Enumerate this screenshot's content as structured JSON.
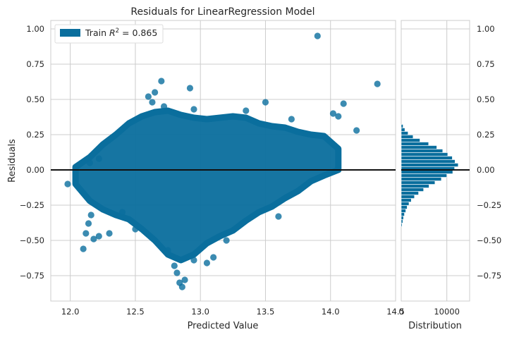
{
  "chart_data": {
    "type": "scatter",
    "title": "Residuals for LinearRegression Model",
    "xlabel": "Predicted Value",
    "ylabel": "Residuals",
    "xlim": [
      11.85,
      14.5
    ],
    "ylim": [
      -0.93,
      1.06
    ],
    "x_ticks": [
      12.0,
      12.5,
      13.0,
      13.5,
      14.0,
      14.5
    ],
    "x_tick_labels": [
      "12.0",
      "12.5",
      "13.0",
      "13.5",
      "14.0",
      "14.5"
    ],
    "y_ticks": [
      -0.75,
      -0.5,
      -0.25,
      0.0,
      0.25,
      0.5,
      0.75,
      1.0
    ],
    "y_tick_labels": [
      "−0.75",
      "−0.50",
      "−0.25",
      "0.00",
      "0.25",
      "0.50",
      "0.75",
      "1.00"
    ],
    "grid": true,
    "reference_line_y": 0,
    "legend": {
      "placement": "top-left",
      "label_prefix": "Train ",
      "label_var": "R",
      "label_sup": "2",
      "label_suffix": " = 0.865"
    },
    "point_color": "#0a6e9d",
    "series": [
      {
        "name": "Train",
        "points": [
          [
            11.98,
            -0.1
          ],
          [
            12.1,
            -0.56
          ],
          [
            12.12,
            -0.45
          ],
          [
            12.14,
            -0.38
          ],
          [
            12.16,
            -0.32
          ],
          [
            12.18,
            -0.49
          ],
          [
            12.22,
            -0.47
          ],
          [
            12.3,
            -0.45
          ],
          [
            12.6,
            0.52
          ],
          [
            12.63,
            0.48
          ],
          [
            12.65,
            0.55
          ],
          [
            12.7,
            0.63
          ],
          [
            12.72,
            0.45
          ],
          [
            12.8,
            -0.68
          ],
          [
            12.82,
            -0.73
          ],
          [
            12.84,
            -0.8
          ],
          [
            12.86,
            -0.83
          ],
          [
            12.88,
            -0.78
          ],
          [
            12.95,
            -0.64
          ],
          [
            13.05,
            -0.66
          ],
          [
            13.1,
            -0.62
          ],
          [
            12.92,
            0.58
          ],
          [
            13.5,
            0.48
          ],
          [
            13.9,
            0.95
          ],
          [
            14.36,
            0.61
          ],
          [
            14.1,
            0.47
          ],
          [
            14.2,
            0.28
          ],
          [
            14.02,
            0.4
          ],
          [
            14.06,
            0.38
          ],
          [
            12.95,
            0.43
          ],
          [
            13.35,
            0.42
          ],
          [
            13.7,
            0.36
          ],
          [
            12.75,
            -0.57
          ],
          [
            13.2,
            -0.5
          ],
          [
            12.5,
            -0.42
          ],
          [
            12.4,
            -0.3
          ],
          [
            13.6,
            -0.33
          ],
          [
            12.22,
            0.08
          ],
          [
            12.15,
            0.05
          ]
        ]
      }
    ],
    "cloud": {
      "x_start": 12.04,
      "x_end": 14.06,
      "upper_envelope": [
        [
          12.04,
          0.02
        ],
        [
          12.15,
          0.09
        ],
        [
          12.25,
          0.18
        ],
        [
          12.35,
          0.25
        ],
        [
          12.45,
          0.33
        ],
        [
          12.55,
          0.38
        ],
        [
          12.65,
          0.41
        ],
        [
          12.75,
          0.42
        ],
        [
          12.85,
          0.39
        ],
        [
          12.95,
          0.37
        ],
        [
          13.05,
          0.36
        ],
        [
          13.15,
          0.37
        ],
        [
          13.25,
          0.38
        ],
        [
          13.35,
          0.37
        ],
        [
          13.45,
          0.33
        ],
        [
          13.55,
          0.31
        ],
        [
          13.65,
          0.3
        ],
        [
          13.75,
          0.27
        ],
        [
          13.85,
          0.25
        ],
        [
          13.95,
          0.24
        ],
        [
          14.06,
          0.15
        ]
      ],
      "lower_envelope": [
        [
          14.06,
          0.0
        ],
        [
          13.95,
          -0.04
        ],
        [
          13.85,
          -0.08
        ],
        [
          13.75,
          -0.15
        ],
        [
          13.65,
          -0.2
        ],
        [
          13.55,
          -0.26
        ],
        [
          13.45,
          -0.3
        ],
        [
          13.35,
          -0.36
        ],
        [
          13.25,
          -0.43
        ],
        [
          13.15,
          -0.47
        ],
        [
          13.05,
          -0.52
        ],
        [
          12.95,
          -0.6
        ],
        [
          12.85,
          -0.64
        ],
        [
          12.75,
          -0.6
        ],
        [
          12.65,
          -0.5
        ],
        [
          12.55,
          -0.42
        ],
        [
          12.45,
          -0.35
        ],
        [
          12.35,
          -0.32
        ],
        [
          12.25,
          -0.28
        ],
        [
          12.15,
          -0.22
        ],
        [
          12.04,
          -0.1
        ]
      ]
    },
    "distribution": {
      "xlabel": "Distribution",
      "x_ticks": [
        0,
        10000
      ],
      "x_tick_labels": [
        "0",
        "10000"
      ],
      "xlim": [
        0,
        15000
      ],
      "bins": [
        {
          "center": 0.31,
          "count": 400
        },
        {
          "center": 0.285,
          "count": 800
        },
        {
          "center": 0.26,
          "count": 1500
        },
        {
          "center": 0.235,
          "count": 2600
        },
        {
          "center": 0.21,
          "count": 4100
        },
        {
          "center": 0.185,
          "count": 6000
        },
        {
          "center": 0.16,
          "count": 7800
        },
        {
          "center": 0.135,
          "count": 9100
        },
        {
          "center": 0.11,
          "count": 10200
        },
        {
          "center": 0.085,
          "count": 11200
        },
        {
          "center": 0.06,
          "count": 11800
        },
        {
          "center": 0.035,
          "count": 12500
        },
        {
          "center": 0.01,
          "count": 11700
        },
        {
          "center": -0.015,
          "count": 11300
        },
        {
          "center": -0.04,
          "count": 10000
        },
        {
          "center": -0.065,
          "count": 8800
        },
        {
          "center": -0.09,
          "count": 7400
        },
        {
          "center": -0.115,
          "count": 6100
        },
        {
          "center": -0.14,
          "count": 4900
        },
        {
          "center": -0.165,
          "count": 3800
        },
        {
          "center": -0.19,
          "count": 2900
        },
        {
          "center": -0.215,
          "count": 2200
        },
        {
          "center": -0.24,
          "count": 1700
        },
        {
          "center": -0.265,
          "count": 1300
        },
        {
          "center": -0.29,
          "count": 1000
        },
        {
          "center": -0.315,
          "count": 700
        },
        {
          "center": -0.34,
          "count": 500
        },
        {
          "center": -0.365,
          "count": 350
        },
        {
          "center": -0.39,
          "count": 200
        }
      ]
    }
  }
}
